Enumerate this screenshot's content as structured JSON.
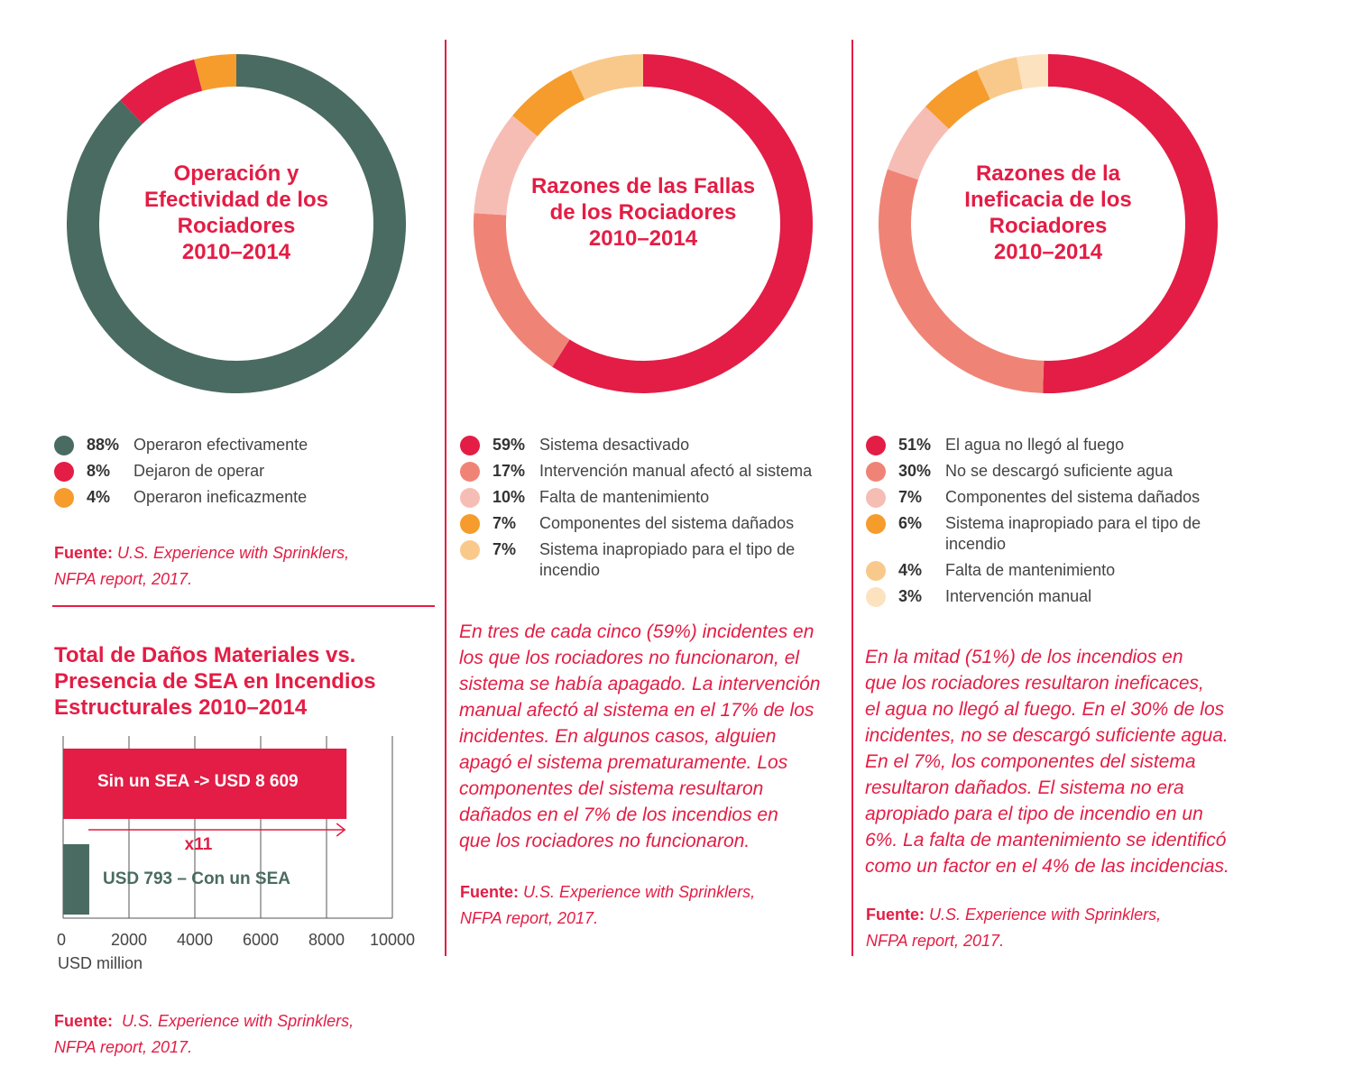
{
  "colors": {
    "red": "#e31d45",
    "green": "#4a6b61",
    "orange": "#f59c2c",
    "salmon": "#ef8476",
    "pink": "#f6bdb5",
    "peach": "#f9c98c",
    "cream": "#fde2c0"
  },
  "chart_data": [
    {
      "type": "pie",
      "title": "Operación y Efectividad de los Rociadores 2010–2014",
      "title_lines": [
        "Operación y",
        "Efectividad de los",
        "Rociadores",
        "2010–2014"
      ],
      "slices": [
        {
          "pct_label": "88%",
          "label": "Operaron efectivamente",
          "value": 88,
          "color": "#4a6b61"
        },
        {
          "pct_label": "8%",
          "label": "Dejaron de operar",
          "value": 8,
          "color": "#e31d45"
        },
        {
          "pct_label": "4%",
          "label": "Operaron ineficazmente",
          "value": 4,
          "color": "#f59c2c"
        }
      ]
    },
    {
      "type": "pie",
      "title": "Razones de las Fallas de los Rociadores 2010–2014",
      "title_lines": [
        "Razones de las Fallas",
        "de los Rociadores",
        "2010–2014"
      ],
      "slices": [
        {
          "pct_label": "59%",
          "label": "Sistema desactivado",
          "value": 59,
          "color": "#e31d45"
        },
        {
          "pct_label": "17%",
          "label": "Intervención manual afectó al sistema",
          "value": 17,
          "color": "#ef8476"
        },
        {
          "pct_label": "10%",
          "label": "Falta de mantenimiento",
          "value": 10,
          "color": "#f6bdb5"
        },
        {
          "pct_label": "7%",
          "label": "Componentes del sistema dañados",
          "value": 7,
          "color": "#f59c2c"
        },
        {
          "pct_label": "7%",
          "label": "Sistema inapropiado para el tipo de incendio",
          "value": 7,
          "color": "#f9c98c"
        }
      ]
    },
    {
      "type": "pie",
      "title": "Razones de la Ineficacia de los Rociadores 2010–2014",
      "title_lines": [
        "Razones de la",
        "Ineficacia de los",
        "Rociadores",
        "2010–2014"
      ],
      "slices": [
        {
          "pct_label": "51%",
          "label": "El agua no llegó al fuego",
          "value": 51,
          "color": "#e31d45"
        },
        {
          "pct_label": "30%",
          "label": "No se descargó suficiente agua",
          "value": 30,
          "color": "#ef8476"
        },
        {
          "pct_label": "7%",
          "label": "Componentes del sistema dañados",
          "value": 7,
          "color": "#f6bdb5"
        },
        {
          "pct_label": "6%",
          "label": "Sistema inapropiado para el tipo de incendio",
          "value": 6,
          "color": "#f59c2c"
        },
        {
          "pct_label": "4%",
          "label": "Falta de mantenimiento",
          "value": 4,
          "color": "#f9c98c"
        },
        {
          "pct_label": "3%",
          "label": "Intervención manual",
          "value": 3,
          "color": "#fde2c0"
        }
      ]
    },
    {
      "type": "bar",
      "orientation": "horizontal",
      "title": "Total de Daños Materiales vs. Presencia de SEA en Incendios Estructurales 2010–2014",
      "title_lines": [
        "Total de Daños Materiales vs.",
        "Presencia de SEA en Incendios",
        "Estructurales 2010–2014"
      ],
      "bars": [
        {
          "label": "Sin un SEA -> USD 8 609",
          "value": 8609,
          "color": "#e31d45"
        },
        {
          "label": "USD 793 – Con un SEA",
          "value": 793,
          "color": "#4a6b61"
        }
      ],
      "multiplier_label": "x11",
      "xlim": [
        0,
        10000
      ],
      "xticks": [
        0,
        2000,
        4000,
        6000,
        8000,
        10000
      ],
      "xtick_labels": [
        "0",
        "2000",
        "4000",
        "6000",
        "8000",
        "10000"
      ],
      "xlabel": "USD million",
      "grid": true
    }
  ],
  "sources": {
    "label": "Fuente:",
    "text": "U.S. Experience with Sprinklers,",
    "text2": "NFPA report, 2017."
  },
  "paragraphs": {
    "failures": [
      "En tres de cada cinco (59%) incidentes en",
      "los que los rociadores no funcionaron, el",
      "sistema se había apagado. La intervención",
      "manual afectó al sistema en el 17% de los",
      "incidentes. En algunos casos, alguien",
      "apagó el sistema prematuramente. Los",
      "componentes del sistema resultaron",
      "dañados en el 7% de los incendios en",
      "que los rociadores no funcionaron."
    ],
    "ineffective": [
      "En la mitad (51%) de los incendios en",
      "que los rociadores resultaron ineficaces,",
      "el agua no llegó al fuego. En el 30% de los",
      "incidentes, no se descargó suficiente agua.",
      "En el 7%, los componentes del sistema",
      "resultaron dañados. El sistema no era",
      "apropiado para el tipo de incendio en un",
      "6%. La falta de mantenimiento se identificó",
      "como un factor en el 4% de las incidencias."
    ]
  }
}
